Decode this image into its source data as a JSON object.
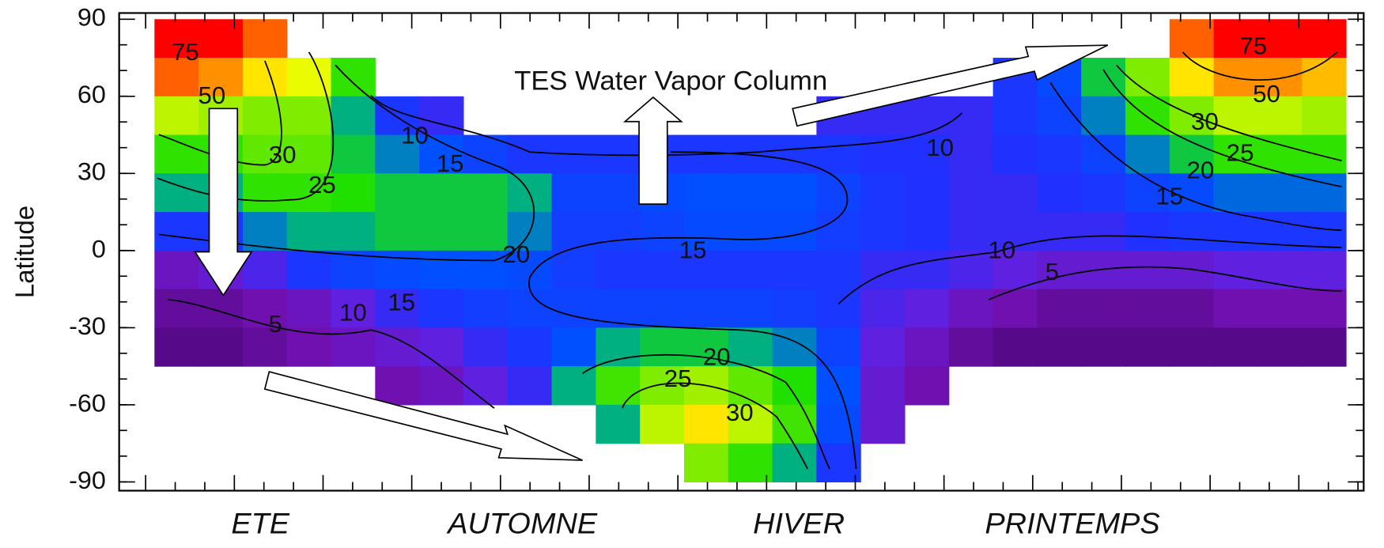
{
  "chart_data": {
    "type": "heatmap",
    "title": "TES Water Vapor Column",
    "ylabel": "Latitude",
    "ylim": [
      -93.4,
      92.4
    ],
    "yticks": [
      90,
      60,
      30,
      0,
      -30,
      -60,
      -90
    ],
    "xlim": [
      -1.3,
      26.9
    ],
    "rows": [
      82.5,
      67.5,
      52.5,
      37.5,
      22.5,
      7.5,
      -7.5,
      -22.5,
      -37.5,
      -52.5,
      -67.5,
      -82.5
    ],
    "row_height": 15,
    "seasons": [
      "ETE",
      "AUTOMNE",
      "HIVER",
      "PRINTEMPS"
    ],
    "colormap": [
      [
        0,
        "#300050"
      ],
      [
        5,
        "#7010b0"
      ],
      [
        8,
        "#6020e0"
      ],
      [
        11,
        "#2030ff"
      ],
      [
        16,
        "#0050ff"
      ],
      [
        20,
        "#00b080"
      ],
      [
        24,
        "#20e000"
      ],
      [
        32,
        "#a0f000"
      ],
      [
        42,
        "#ffff00"
      ],
      [
        55,
        "#ff9000"
      ],
      [
        70,
        "#ff0000"
      ]
    ],
    "values": [
      [
        75,
        60,
        35,
        25,
        20,
        12,
        6,
        4,
        3,
        null,
        null,
        null
      ],
      [
        75,
        55,
        32,
        25,
        20,
        12,
        7,
        4,
        3,
        null,
        null,
        null
      ],
      [
        60,
        45,
        30,
        28,
        25,
        18,
        9,
        5,
        4,
        null,
        null,
        null
      ],
      [
        null,
        40,
        30,
        28,
        25,
        20,
        12,
        6,
        5,
        null,
        null,
        null
      ],
      [
        null,
        25,
        20,
        22,
        24,
        20,
        14,
        8,
        6,
        null,
        null,
        null
      ],
      [
        null,
        null,
        12,
        18,
        22,
        22,
        15,
        10,
        7,
        5,
        null,
        null
      ],
      [
        null,
        null,
        10,
        16,
        22,
        22,
        16,
        12,
        8,
        6,
        null,
        null
      ],
      [
        null,
        null,
        null,
        14,
        22,
        22,
        16,
        13,
        10,
        8,
        null,
        null
      ],
      [
        null,
        null,
        null,
        12,
        20,
        18,
        15,
        14,
        12,
        10,
        null,
        null
      ],
      [
        null,
        null,
        null,
        12,
        14,
        13,
        13,
        14,
        16,
        20,
        null,
        null
      ],
      [
        null,
        null,
        null,
        12,
        14,
        13,
        12,
        14,
        20,
        26,
        20,
        null
      ],
      [
        null,
        null,
        null,
        12,
        15,
        14,
        12,
        14,
        22,
        30,
        35,
        null
      ],
      [
        null,
        null,
        null,
        12,
        16,
        15,
        12,
        14,
        22,
        32,
        45,
        30
      ],
      [
        null,
        null,
        null,
        12,
        16,
        15,
        12,
        14,
        20,
        28,
        35,
        25
      ],
      [
        null,
        null,
        null,
        12,
        16,
        15,
        12,
        13,
        18,
        24,
        26,
        20
      ],
      [
        null,
        null,
        10,
        12,
        14,
        13,
        12,
        12,
        14,
        16,
        15,
        12
      ],
      [
        null,
        null,
        10,
        11,
        12,
        12,
        10,
        9,
        8,
        7,
        7,
        null
      ],
      [
        null,
        null,
        10,
        11,
        11,
        11,
        10,
        8,
        6,
        5,
        null,
        null
      ],
      [
        null,
        null,
        10,
        10,
        10,
        10,
        9,
        6,
        4,
        null,
        null,
        null
      ],
      [
        null,
        12,
        12,
        11,
        10,
        10,
        8,
        5,
        3,
        null,
        null,
        null
      ],
      [
        null,
        15,
        14,
        12,
        11,
        10,
        7,
        4,
        3,
        null,
        null,
        null
      ],
      [
        null,
        22,
        18,
        14,
        12,
        10,
        7,
        4,
        3,
        null,
        null,
        null
      ],
      [
        null,
        30,
        25,
        18,
        14,
        11,
        7,
        4,
        3,
        null,
        null,
        null
      ],
      [
        60,
        45,
        30,
        22,
        15,
        12,
        7,
        4,
        3,
        null,
        null,
        null
      ],
      [
        80,
        55,
        35,
        25,
        17,
        12,
        8,
        5,
        3,
        null,
        null,
        null
      ],
      [
        80,
        55,
        35,
        25,
        17,
        12,
        8,
        5,
        3,
        null,
        null,
        null
      ],
      [
        70,
        50,
        32,
        25,
        17,
        12,
        8,
        5,
        3,
        null,
        null,
        null
      ]
    ],
    "contour_labels": [
      75,
      50,
      30,
      25,
      10,
      15,
      20,
      15,
      10,
      5,
      15,
      10,
      20,
      25,
      30,
      10,
      5,
      75,
      50,
      30,
      25,
      20,
      15
    ]
  }
}
